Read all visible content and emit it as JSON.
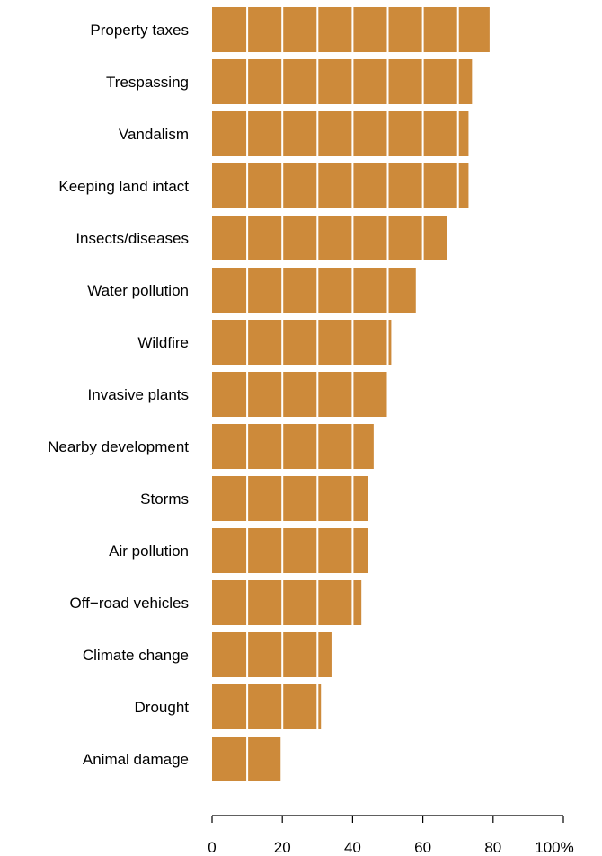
{
  "chart_data": {
    "type": "bar",
    "orientation": "horizontal",
    "categories": [
      "Property taxes",
      "Trespassing",
      "Vandalism",
      "Keeping land intact",
      "Insects/diseases",
      "Water pollution",
      "Wildfire",
      "Invasive plants",
      "Nearby development",
      "Storms",
      "Air pollution",
      "Off−road vehicles",
      "Climate change",
      "Drought",
      "Animal damage"
    ],
    "values": [
      79,
      74,
      73,
      73,
      67,
      58,
      51,
      50,
      46,
      44.5,
      44.5,
      42.5,
      34,
      31,
      19.5
    ],
    "xlim": [
      0,
      100
    ],
    "xticks": [
      0,
      20,
      40,
      60,
      80,
      100
    ],
    "xtick_labels": [
      "0",
      "20",
      "40",
      "60",
      "80",
      "100%"
    ],
    "gridlines_every": 10,
    "grid": "white lines inside bars",
    "bar_color": "#CD8A3A",
    "title": "",
    "xlabel": "",
    "ylabel": ""
  }
}
